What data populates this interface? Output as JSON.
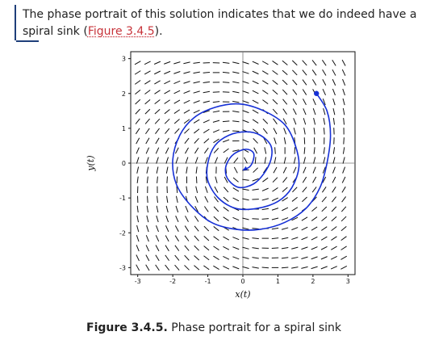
{
  "intro": {
    "text_before_link": "The phase portrait of this solution indicates that we do indeed have a spiral sink (",
    "link_text": "Figure 3.4.5",
    "text_after_link": ")."
  },
  "figure": {
    "caption_label": "Figure 3.4.5.",
    "caption_text": " Phase portrait for a spiral sink"
  },
  "chart_data": {
    "type": "line",
    "xlabel": "x(t)",
    "ylabel": "y(t)",
    "xlim": [
      -3.2,
      3.2
    ],
    "ylim": [
      -3.2,
      3.2
    ],
    "xticks": [
      "-3",
      "-2",
      "-1",
      "0",
      "1",
      "2",
      "3"
    ],
    "yticks": [
      "-3",
      "-2",
      "-1",
      "0",
      "1",
      "2",
      "3"
    ],
    "grid": false,
    "series": [
      {
        "x": [
          2.1,
          2.4,
          2.5,
          2.4,
          2.2,
          1.8,
          1.2,
          0.5,
          -0.2,
          -0.9,
          -1.5,
          -1.9,
          -2.0,
          -1.8,
          -1.4,
          -0.8,
          -0.1,
          0.6,
          1.2,
          1.5,
          1.6,
          1.4,
          1.0,
          0.4,
          -0.2,
          -0.7,
          -1.0,
          -1.0,
          -0.8,
          -0.4,
          0.1,
          0.5,
          0.8,
          0.8,
          0.6,
          0.3,
          -0.1,
          -0.4,
          -0.5,
          -0.4,
          -0.2,
          0.1,
          0.3,
          0.3,
          0.2,
          0.0
        ],
        "y": [
          2.0,
          1.5,
          0.8,
          0.0,
          -0.7,
          -1.3,
          -1.7,
          -1.9,
          -1.9,
          -1.7,
          -1.2,
          -0.6,
          0.1,
          0.8,
          1.3,
          1.6,
          1.7,
          1.5,
          1.1,
          0.5,
          -0.1,
          -0.7,
          -1.1,
          -1.3,
          -1.3,
          -1.0,
          -0.5,
          0.0,
          0.5,
          0.8,
          0.9,
          0.8,
          0.5,
          0.1,
          -0.3,
          -0.6,
          -0.7,
          -0.5,
          -0.2,
          0.1,
          0.3,
          0.4,
          0.3,
          0.1,
          -0.1,
          -0.2
        ]
      }
    ]
  }
}
